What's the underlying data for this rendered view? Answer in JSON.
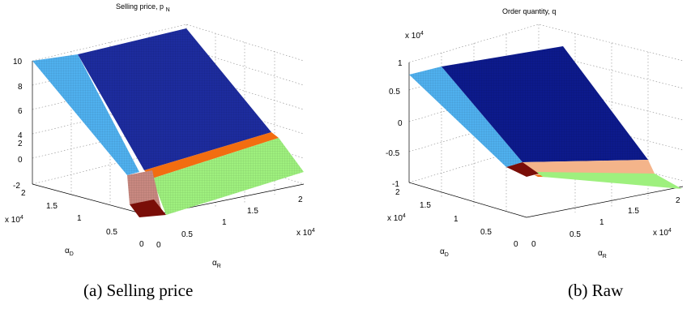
{
  "colors": {
    "dark_blue": "#1d2c9e",
    "navy": "#0d1a8c",
    "light_blue": "#4fb0ee",
    "orange": "#f26d10",
    "salmon": "#f4b48a",
    "green": "#9ef07e",
    "dark_red": "#7a0e08",
    "rose": "#c88880"
  },
  "chart_data": [
    {
      "type": "surface",
      "title": "Selling price, p",
      "title_sub": "N",
      "caption": "(a) Selling price",
      "zlim": [
        -2,
        10
      ],
      "z_ticks": [
        "10",
        "8",
        "6",
        "4",
        "2",
        "0",
        "-2"
      ],
      "xlabel": "α",
      "xlabel_sub": "R",
      "x_ticks": [
        "0",
        "0.5",
        "1",
        "1.5",
        "2"
      ],
      "x_multiplier": "x 10",
      "x_multiplier_exp": "4",
      "ylabel": "α",
      "ylabel_sub": "D",
      "y_ticks": [
        "0",
        "0.5",
        "1",
        "1.5",
        "2"
      ],
      "y_multiplier": "x 10",
      "y_multiplier_exp": "4",
      "grid": true
    },
    {
      "type": "surface",
      "title": "Order quantity, q",
      "caption": "(b) Raw",
      "z_multiplier": "x 10",
      "z_multiplier_exp": "4",
      "zlim": [
        -1,
        1
      ],
      "z_ticks": [
        "1",
        "0.5",
        "0",
        "-0.5",
        "-1"
      ],
      "xlabel": "α",
      "xlabel_sub": "R",
      "x_ticks": [
        "0",
        "0.5",
        "1",
        "1.5",
        "2"
      ],
      "x_multiplier": "x 10",
      "x_multiplier_exp": "4",
      "ylabel": "α",
      "ylabel_sub": "D",
      "y_ticks": [
        "0",
        "0.5",
        "1",
        "1.5",
        "2"
      ],
      "y_multiplier": "x 10",
      "y_multiplier_exp": "4",
      "grid": true
    }
  ]
}
